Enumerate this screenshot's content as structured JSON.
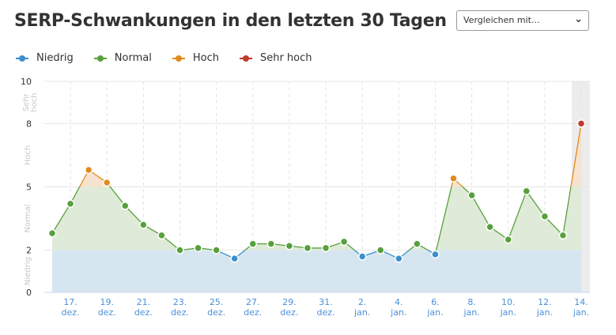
{
  "header": {
    "title": "SERP-Schwankungen in den letzten 30 Tagen",
    "compare_label": "Vergleichen mit...",
    "compare_icon": "chevron-down-icon"
  },
  "legend": [
    {
      "label": "Niedrig",
      "color": "#3a8fce"
    },
    {
      "label": "Normal",
      "color": "#57a03c"
    },
    {
      "label": "Hoch",
      "color": "#e38a1e"
    },
    {
      "label": "Sehr hoch",
      "color": "#c0392b"
    }
  ],
  "chart_data": {
    "type": "area",
    "ylim": [
      0,
      10
    ],
    "yticks": [
      "0",
      "2",
      "5",
      "8",
      "10"
    ],
    "bands": [
      {
        "label": "Niedrig",
        "from": 0,
        "to": 2,
        "color": "#3a8fce",
        "fill": "#d6e6f1"
      },
      {
        "label": "Normal",
        "from": 2,
        "to": 5,
        "color": "#57a03c",
        "fill": "#dfebd8"
      },
      {
        "label": "Hoch",
        "from": 5,
        "to": 8,
        "color": "#e38a1e",
        "fill": "#f5e3cf"
      },
      {
        "label": "Sehr hoch",
        "from": 8,
        "to": 10,
        "color": "#c0392b",
        "fill": "#f2d6d3"
      }
    ],
    "x": [
      "16. dez.",
      "17. dez.",
      "18. dez.",
      "19. dez.",
      "20. dez.",
      "21. dez.",
      "22. dez.",
      "23. dez.",
      "24. dez.",
      "25. dez.",
      "26. dez.",
      "27. dez.",
      "28. dez.",
      "29. dez.",
      "30. dez.",
      "31. dez.",
      "1. jan.",
      "2. jan.",
      "3. jan.",
      "4. jan.",
      "5. jan.",
      "6. jan.",
      "7. jan.",
      "8. jan.",
      "9. jan.",
      "10. jan.",
      "11. jan.",
      "12. jan.",
      "13. jan.",
      "14. jan."
    ],
    "values": [
      2.8,
      4.2,
      5.8,
      5.2,
      4.1,
      3.2,
      2.7,
      2.0,
      2.1,
      2.0,
      1.6,
      2.3,
      2.3,
      2.2,
      2.1,
      2.1,
      2.4,
      1.7,
      2.0,
      1.6,
      2.3,
      1.8,
      5.4,
      4.6,
      3.1,
      2.5,
      4.8,
      3.6,
      2.7,
      8.0
    ],
    "xtick_labels": [
      [
        "17.",
        "dez."
      ],
      [
        "19.",
        "dez."
      ],
      [
        "21.",
        "dez."
      ],
      [
        "23.",
        "dez."
      ],
      [
        "25.",
        "dez."
      ],
      [
        "27.",
        "dez."
      ],
      [
        "29.",
        "dez."
      ],
      [
        "31.",
        "dez."
      ],
      [
        "2.",
        "jan."
      ],
      [
        "4.",
        "jan."
      ],
      [
        "6.",
        "jan."
      ],
      [
        "8.",
        "jan."
      ],
      [
        "10.",
        "jan."
      ],
      [
        "12.",
        "jan."
      ],
      [
        "14.",
        "jan."
      ]
    ],
    "highlighted": "14. jan.",
    "grid": true
  }
}
